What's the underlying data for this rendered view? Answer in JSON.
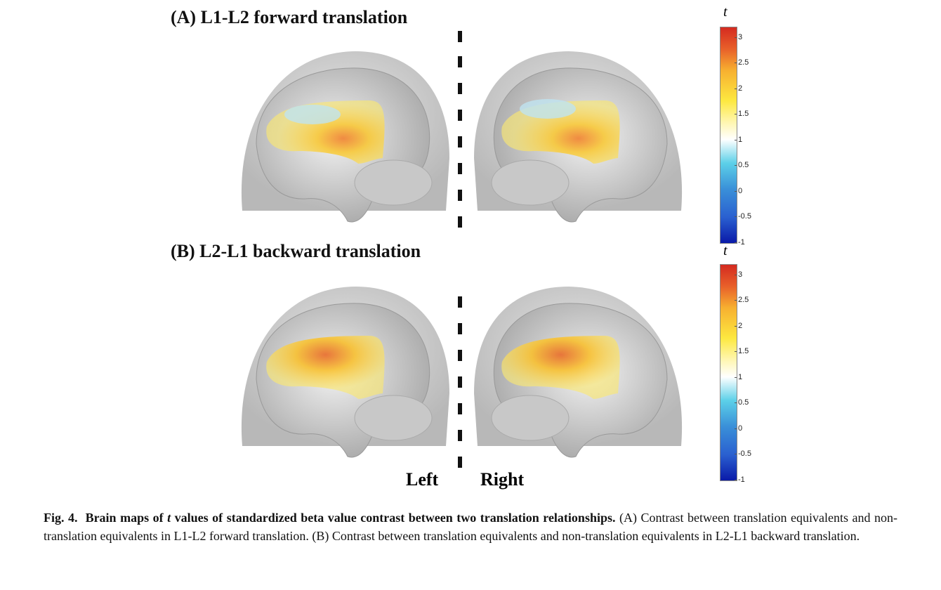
{
  "panels": [
    {
      "title": "(A) L1-L2 forward translation"
    },
    {
      "title": "(B) L2-L1 backward translation"
    }
  ],
  "hemisphere_labels": {
    "left": "Left",
    "right": "Right"
  },
  "colorbar": {
    "label": "t",
    "ticks": [
      "3",
      "2.5",
      "2",
      "1.5",
      "1",
      "0.5",
      "0",
      "-0.5",
      "-1"
    ],
    "range": [
      -1,
      3.2
    ],
    "colors": {
      "min": "#0a1aa8",
      "mid": "#ffffff",
      "yellow": "#fde840",
      "max": "#d42a20"
    }
  },
  "caption": {
    "fig": "Fig. 4.",
    "bold": "Brain maps of ",
    "t": "t",
    "bold2": " values of standardized beta value contrast between two translation relationships.",
    "body": " (A) Contrast between translation equivalents and non-translation equivalents in L1-L2 forward translation. (B) Contrast between translation equivalents and non-translation equivalents in L2-L1 backward translation."
  }
}
